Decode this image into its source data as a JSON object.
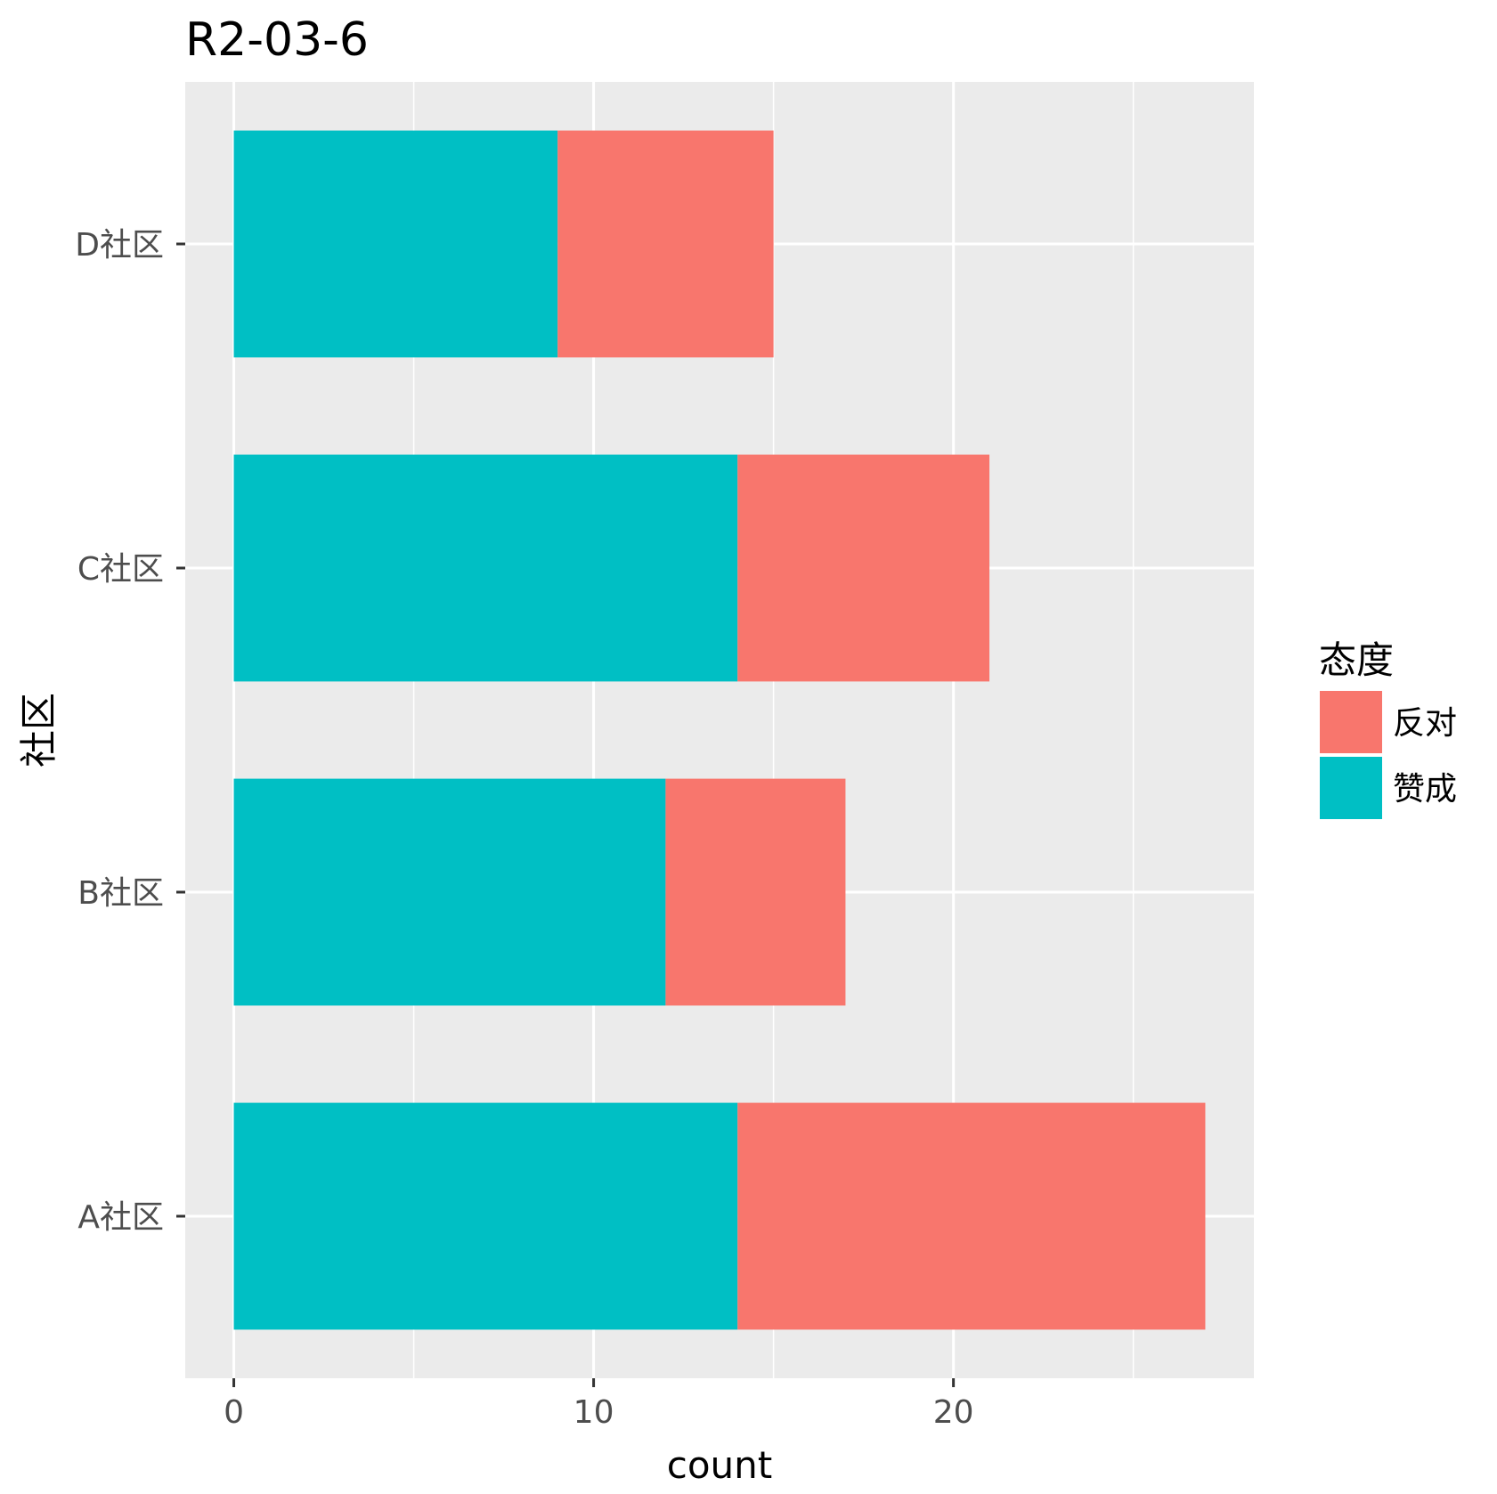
{
  "chart_data": {
    "type": "bar",
    "orientation": "horizontal",
    "stacked": true,
    "title": "R2-03-6",
    "xlabel": "count",
    "ylabel": "社区",
    "categories": [
      "A社区",
      "B社区",
      "C社区",
      "D社区"
    ],
    "series": [
      {
        "name": "赞成",
        "color": "#00BFC4",
        "values": [
          14,
          12,
          14,
          9
        ]
      },
      {
        "name": "反对",
        "color": "#F8766D",
        "values": [
          13,
          5,
          7,
          6
        ]
      }
    ],
    "xlim": [
      -1.35,
      28.35
    ],
    "xticks": [
      0,
      10,
      20
    ],
    "xtick_labels": [
      "0",
      "10",
      "20"
    ],
    "grid": true,
    "panel_background": "#EBEBEB",
    "legend": {
      "title": "态度",
      "position": "right",
      "order": [
        "反对",
        "赞成"
      ]
    }
  }
}
